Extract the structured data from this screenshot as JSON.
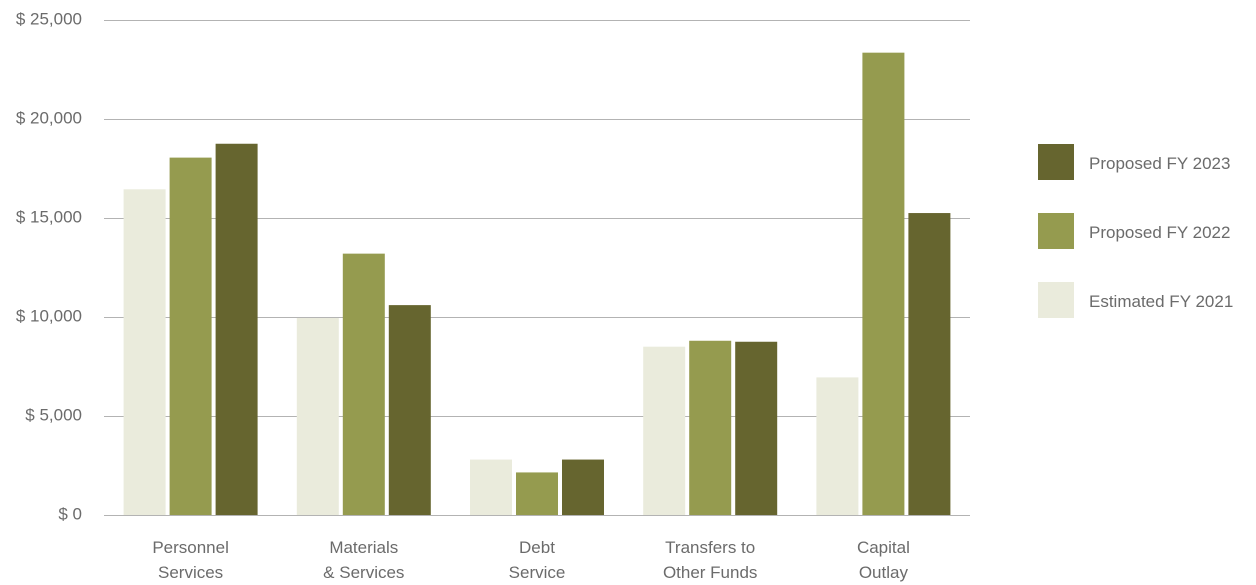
{
  "chart_data": {
    "type": "bar",
    "categories": [
      [
        "Personnel",
        "Services"
      ],
      [
        "Materials",
        "& Services"
      ],
      [
        "Debt",
        "Service"
      ],
      [
        "Transfers to",
        "Other Funds"
      ],
      [
        "Capital",
        "Outlay"
      ]
    ],
    "series": [
      {
        "name": "Estimated FY 2021",
        "color": "#eaebdc",
        "values": [
          16450,
          9950,
          2800,
          8500,
          6950
        ]
      },
      {
        "name": "Proposed FY 2022",
        "color": "#959b4f",
        "values": [
          18050,
          13200,
          2150,
          8800,
          23350
        ]
      },
      {
        "name": "Proposed FY 2023",
        "color": "#66652f",
        "values": [
          18750,
          10600,
          2800,
          8750,
          15250
        ]
      }
    ],
    "y_ticks": [
      "$ 0",
      "$ 5,000",
      "$ 10,000",
      "$ 15,000",
      "$ 20,000",
      "$ 25,000"
    ],
    "y_tick_values": [
      0,
      5000,
      10000,
      15000,
      20000,
      25000
    ],
    "ylim": [
      0,
      25000
    ],
    "grid": true,
    "legend": {
      "position": "right",
      "entries": [
        "Proposed FY 2023",
        "Proposed FY 2022",
        "Estimated FY 2021"
      ]
    },
    "gridline_color": "#b3b3b3"
  }
}
